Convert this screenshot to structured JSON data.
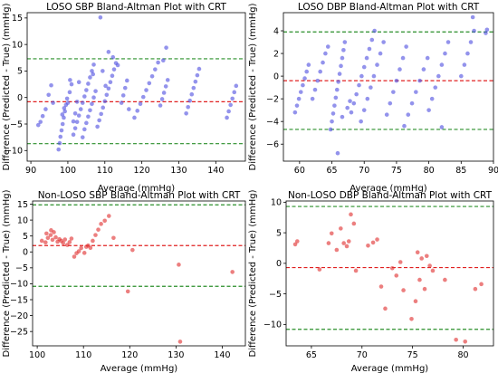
{
  "chart_data": [
    {
      "type": "scatter",
      "title": "LOSO SBP Bland-Altman Plot with CRT",
      "xlabel": "Average (mmHg)",
      "ylabel": "Difference (Predicted - True) (mmHg)",
      "xlim": [
        89,
        148
      ],
      "ylim": [
        -12,
        16
      ],
      "xticks": [
        90,
        100,
        110,
        120,
        130,
        140
      ],
      "yticks": [
        -10,
        -5,
        0,
        5,
        10,
        15
      ],
      "point_color": "#5050e0",
      "grid": false,
      "lines": [
        {
          "kind": "mean",
          "y": -0.8,
          "color": "#e02020"
        },
        {
          "kind": "upper-limit",
          "y": 7.3,
          "color": "#2a8f2a"
        },
        {
          "kind": "lower-limit",
          "y": -8.7,
          "color": "#2a8f2a"
        }
      ],
      "points": [
        [
          92.0,
          -5.2
        ],
        [
          92.6,
          -4.6
        ],
        [
          93.2,
          -3.5
        ],
        [
          94.0,
          -2.2
        ],
        [
          94.8,
          0.5
        ],
        [
          95.5,
          2.3
        ],
        [
          96.0,
          -1.0
        ],
        [
          97.5,
          -9.8
        ],
        [
          97.8,
          -8.6
        ],
        [
          98.0,
          -7.4
        ],
        [
          98.3,
          -6.2
        ],
        [
          98.6,
          -5.0
        ],
        [
          98.9,
          -3.8
        ],
        [
          99.2,
          -2.6
        ],
        [
          99.5,
          -1.4
        ],
        [
          99.8,
          -0.2
        ],
        [
          98.5,
          -3.2
        ],
        [
          99.0,
          -2.0
        ],
        [
          100.0,
          -1.0
        ],
        [
          100.5,
          1.0
        ],
        [
          101.0,
          2.5
        ],
        [
          101.5,
          -4.5
        ],
        [
          102.0,
          -3.0
        ],
        [
          102.5,
          -0.8
        ],
        [
          101.5,
          -7.0
        ],
        [
          102.0,
          -5.8
        ],
        [
          102.5,
          -4.6
        ],
        [
          103.0,
          -3.4
        ],
        [
          103.5,
          -2.2
        ],
        [
          104.0,
          -1.0
        ],
        [
          104.5,
          0.2
        ],
        [
          105.0,
          1.4
        ],
        [
          105.5,
          2.6
        ],
        [
          106.0,
          3.8
        ],
        [
          106.5,
          5.0
        ],
        [
          107.0,
          6.2
        ],
        [
          104.0,
          -7.5
        ],
        [
          104.5,
          -6.0
        ],
        [
          105.0,
          -4.8
        ],
        [
          105.5,
          -3.6
        ],
        [
          106.0,
          -2.4
        ],
        [
          106.5,
          -1.2
        ],
        [
          107.0,
          0.0
        ],
        [
          107.5,
          1.2
        ],
        [
          108.0,
          -5.5
        ],
        [
          108.5,
          -4.3
        ],
        [
          109.0,
          -3.1
        ],
        [
          109.5,
          -1.9
        ],
        [
          110.0,
          -0.7
        ],
        [
          110.5,
          0.5
        ],
        [
          111.0,
          1.7
        ],
        [
          111.5,
          2.9
        ],
        [
          112.0,
          4.1
        ],
        [
          112.5,
          5.3
        ],
        [
          113.0,
          6.5
        ],
        [
          108.8,
          15.1
        ],
        [
          109.4,
          5.0
        ],
        [
          110.2,
          2.2
        ],
        [
          106.8,
          4.4
        ],
        [
          103.0,
          2.9
        ],
        [
          100.6,
          3.3
        ],
        [
          111.0,
          8.6
        ],
        [
          112.2,
          7.6
        ],
        [
          113.5,
          6.1
        ],
        [
          114.5,
          -1.0
        ],
        [
          115.0,
          0.4
        ],
        [
          115.5,
          1.8
        ],
        [
          116.0,
          3.2
        ],
        [
          116.5,
          -2.2
        ],
        [
          118.0,
          -3.8
        ],
        [
          118.8,
          -2.5
        ],
        [
          119.6,
          -1.2
        ],
        [
          120.4,
          0.1
        ],
        [
          121.2,
          1.4
        ],
        [
          122.0,
          2.7
        ],
        [
          122.8,
          4.0
        ],
        [
          123.6,
          5.3
        ],
        [
          124.4,
          6.6
        ],
        [
          125.0,
          -1.5
        ],
        [
          125.5,
          -0.3
        ],
        [
          126.0,
          0.9
        ],
        [
          126.5,
          2.1
        ],
        [
          127.0,
          3.3
        ],
        [
          125.8,
          7.0
        ],
        [
          126.6,
          9.4
        ],
        [
          132.0,
          -3.0
        ],
        [
          132.5,
          -1.8
        ],
        [
          133.0,
          -0.6
        ],
        [
          133.5,
          0.6
        ],
        [
          134.0,
          1.8
        ],
        [
          134.5,
          3.0
        ],
        [
          135.0,
          4.2
        ],
        [
          135.5,
          5.4
        ],
        [
          143.0,
          -3.8
        ],
        [
          143.5,
          -2.6
        ],
        [
          144.0,
          -1.4
        ],
        [
          144.5,
          -0.2
        ],
        [
          145.0,
          1.0
        ],
        [
          145.5,
          2.2
        ]
      ]
    },
    {
      "type": "scatter",
      "title": "LOSO DBP Bland-Altman Plot with CRT",
      "xlabel": "Average (mmHg)",
      "ylabel": "Difference (Predicted - True) (mmHg)",
      "xlim": [
        57.5,
        90
      ],
      "ylim": [
        -7.5,
        5.6
      ],
      "xticks": [
        60,
        65,
        70,
        75,
        80,
        85,
        90
      ],
      "yticks": [
        -6,
        -4,
        -2,
        0,
        2,
        4
      ],
      "point_color": "#5050e0",
      "grid": false,
      "lines": [
        {
          "kind": "mean",
          "y": -0.4,
          "color": "#e02020"
        },
        {
          "kind": "upper-limit",
          "y": 3.9,
          "color": "#2a8f2a"
        },
        {
          "kind": "lower-limit",
          "y": -4.7,
          "color": "#2a8f2a"
        }
      ],
      "points": [
        [
          59.3,
          -3.2
        ],
        [
          59.6,
          -2.6
        ],
        [
          59.9,
          -2.0
        ],
        [
          60.2,
          -1.4
        ],
        [
          60.5,
          -0.8
        ],
        [
          60.8,
          -0.2
        ],
        [
          61.1,
          0.4
        ],
        [
          61.4,
          1.0
        ],
        [
          62.0,
          -2.0
        ],
        [
          62.4,
          -1.2
        ],
        [
          62.8,
          -0.4
        ],
        [
          63.2,
          0.4
        ],
        [
          63.6,
          1.2
        ],
        [
          64.0,
          2.0
        ],
        [
          64.4,
          2.6
        ],
        [
          64.8,
          -4.7
        ],
        [
          65.0,
          -4.0
        ],
        [
          65.2,
          -3.3
        ],
        [
          65.4,
          -2.6
        ],
        [
          65.6,
          -1.9
        ],
        [
          65.8,
          -1.2
        ],
        [
          66.0,
          -0.5
        ],
        [
          66.2,
          0.2
        ],
        [
          66.4,
          0.9
        ],
        [
          66.6,
          1.6
        ],
        [
          66.8,
          2.3
        ],
        [
          67.0,
          3.0
        ],
        [
          65.9,
          -6.8
        ],
        [
          66.6,
          -3.6
        ],
        [
          67.4,
          -2.8
        ],
        [
          67.8,
          -2.2
        ],
        [
          68.0,
          -3.2
        ],
        [
          68.4,
          -2.4
        ],
        [
          68.8,
          -1.6
        ],
        [
          69.2,
          -0.8
        ],
        [
          69.6,
          0.0
        ],
        [
          70.0,
          0.8
        ],
        [
          70.4,
          1.6
        ],
        [
          70.8,
          2.4
        ],
        [
          71.2,
          3.2
        ],
        [
          71.6,
          4.0
        ],
        [
          69.5,
          -4.0
        ],
        [
          70.0,
          -3.0
        ],
        [
          70.5,
          -2.0
        ],
        [
          71.0,
          -1.0
        ],
        [
          71.5,
          0.0
        ],
        [
          72.0,
          1.0
        ],
        [
          72.5,
          2.0
        ],
        [
          73.0,
          3.0
        ],
        [
          73.5,
          -3.4
        ],
        [
          74.0,
          -2.4
        ],
        [
          74.5,
          -1.4
        ],
        [
          75.0,
          -0.4
        ],
        [
          75.5,
          0.6
        ],
        [
          76.0,
          1.6
        ],
        [
          76.5,
          2.6
        ],
        [
          76.2,
          -4.4
        ],
        [
          76.8,
          -3.4
        ],
        [
          77.4,
          -2.4
        ],
        [
          78.0,
          -1.4
        ],
        [
          78.6,
          -0.4
        ],
        [
          79.2,
          0.6
        ],
        [
          79.8,
          1.6
        ],
        [
          80.0,
          -3.0
        ],
        [
          80.5,
          -2.0
        ],
        [
          81.0,
          -1.0
        ],
        [
          81.5,
          0.0
        ],
        [
          82.0,
          1.0
        ],
        [
          82.5,
          2.0
        ],
        [
          83.0,
          3.0
        ],
        [
          85.0,
          0.0
        ],
        [
          85.5,
          1.0
        ],
        [
          86.0,
          2.0
        ],
        [
          86.5,
          3.0
        ],
        [
          87.0,
          4.0
        ],
        [
          86.8,
          5.2
        ],
        [
          88.8,
          3.8
        ],
        [
          89.0,
          4.1
        ],
        [
          82.0,
          -4.5
        ]
      ]
    },
    {
      "type": "scatter",
      "title": "Non-LOSO SBP Bland-Altman Plot with CRT",
      "xlabel": "Average (mmHg)",
      "ylabel": "Difference (Predicted - True) (mmHg)",
      "xlim": [
        99,
        145
      ],
      "ylim": [
        -29.5,
        16
      ],
      "xticks": [
        100,
        110,
        120,
        130,
        140
      ],
      "yticks": [
        -25,
        -20,
        -15,
        -10,
        -5,
        0,
        5,
        10,
        15
      ],
      "point_color": "#e03030",
      "grid": false,
      "lines": [
        {
          "kind": "mean",
          "y": 2.0,
          "color": "#e02020"
        },
        {
          "kind": "upper-limit",
          "y": 14.8,
          "color": "#2a8f2a"
        },
        {
          "kind": "lower-limit",
          "y": -10.8,
          "color": "#2a8f2a"
        }
      ],
      "points": [
        [
          101.0,
          3.5
        ],
        [
          101.8,
          3.0
        ],
        [
          102.3,
          4.4
        ],
        [
          102.9,
          5.3
        ],
        [
          103.3,
          3.8
        ],
        [
          103.6,
          6.2
        ],
        [
          104.0,
          4.6
        ],
        [
          104.4,
          3.2
        ],
        [
          104.8,
          4.0
        ],
        [
          105.2,
          3.5
        ],
        [
          105.6,
          2.8
        ],
        [
          106.0,
          3.9
        ],
        [
          106.5,
          2.2
        ],
        [
          107.0,
          3.1
        ],
        [
          107.4,
          4.2
        ],
        [
          102.0,
          5.8
        ],
        [
          103.0,
          6.8
        ],
        [
          108.0,
          -1.5
        ],
        [
          108.5,
          -0.4
        ],
        [
          109.0,
          0.2
        ],
        [
          109.5,
          1.2
        ],
        [
          110.2,
          -0.3
        ],
        [
          110.6,
          1.6
        ],
        [
          111.0,
          2.0
        ],
        [
          111.5,
          1.3
        ],
        [
          112.0,
          3.5
        ],
        [
          112.6,
          5.3
        ],
        [
          113.2,
          7.0
        ],
        [
          113.8,
          8.8
        ],
        [
          114.6,
          9.8
        ],
        [
          115.5,
          11.3
        ],
        [
          116.5,
          4.4
        ],
        [
          119.6,
          -12.4
        ],
        [
          120.6,
          0.6
        ],
        [
          130.6,
          -4.0
        ],
        [
          130.9,
          -28.2
        ],
        [
          142.2,
          -6.3
        ]
      ]
    },
    {
      "type": "scatter",
      "title": "Non-LOSO DBP Bland-Altman Plot with CRT",
      "xlabel": "Average (mmHg)",
      "ylabel": "Difference (Predicted - True) (mmHg)",
      "xlim": [
        62.5,
        83
      ],
      "ylim": [
        -13.5,
        10.2
      ],
      "xticks": [
        65,
        70,
        75,
        80
      ],
      "yticks": [
        -10,
        -5,
        0,
        5,
        10
      ],
      "point_color": "#e03030",
      "grid": false,
      "lines": [
        {
          "kind": "mean",
          "y": -0.7,
          "color": "#e02020"
        },
        {
          "kind": "upper-limit",
          "y": 9.3,
          "color": "#2a8f2a"
        },
        {
          "kind": "lower-limit",
          "y": -10.8,
          "color": "#2a8f2a"
        }
      ],
      "points": [
        [
          63.4,
          3.1
        ],
        [
          63.6,
          3.6
        ],
        [
          65.8,
          -1.0
        ],
        [
          66.7,
          3.3
        ],
        [
          67.0,
          4.9
        ],
        [
          67.5,
          2.2
        ],
        [
          67.9,
          5.7
        ],
        [
          68.2,
          3.3
        ],
        [
          68.5,
          2.8
        ],
        [
          68.7,
          3.6
        ],
        [
          68.9,
          8.0
        ],
        [
          69.2,
          6.5
        ],
        [
          69.4,
          -1.2
        ],
        [
          70.6,
          2.9
        ],
        [
          71.1,
          3.4
        ],
        [
          71.5,
          3.9
        ],
        [
          71.9,
          -3.8
        ],
        [
          72.3,
          -7.4
        ],
        [
          73.0,
          -0.8
        ],
        [
          73.4,
          -2.0
        ],
        [
          73.8,
          0.2
        ],
        [
          74.1,
          -4.4
        ],
        [
          74.9,
          -9.1
        ],
        [
          75.3,
          -6.2
        ],
        [
          75.5,
          1.8
        ],
        [
          75.7,
          -2.7
        ],
        [
          75.9,
          0.8
        ],
        [
          76.2,
          -4.2
        ],
        [
          76.4,
          1.2
        ],
        [
          76.7,
          -0.4
        ],
        [
          77.0,
          -1.2
        ],
        [
          78.2,
          -2.7
        ],
        [
          79.3,
          -12.5
        ],
        [
          80.2,
          -12.8
        ],
        [
          81.2,
          -4.2
        ],
        [
          81.8,
          -3.4
        ]
      ]
    }
  ]
}
